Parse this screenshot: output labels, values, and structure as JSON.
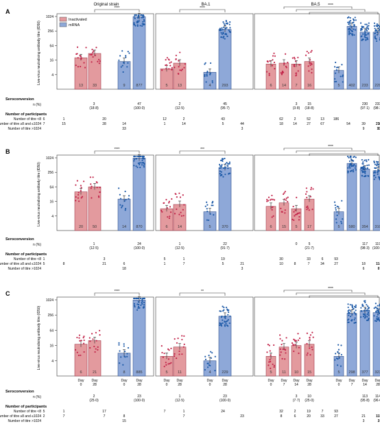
{
  "header": {
    "strains": [
      "Original strain",
      "BA.1",
      "BA.5"
    ]
  },
  "legend": {
    "items": [
      {
        "label": "Inactivated",
        "color": "#e39a9e"
      },
      {
        "label": "mRNA",
        "color": "#8ea8d8"
      }
    ]
  },
  "colors": {
    "inactivated_fill": "#e39a9e",
    "inactivated_dot": "#c2254a",
    "mrna_fill": "#8ea8d8",
    "mrna_dot": "#1f5ba8"
  },
  "x_tick_labels": [
    {
      "day": "Day",
      "value": "0"
    },
    {
      "day": "Day",
      "value": "28"
    },
    {
      "day": "Day",
      "value": "0"
    },
    {
      "day": "Day",
      "value": "28"
    },
    {
      "day": "Day",
      "value": "0"
    },
    {
      "day": "Day",
      "value": "28"
    },
    {
      "day": "Day",
      "value": "0"
    },
    {
      "day": "Day",
      "value": "28"
    },
    {
      "day": "Day",
      "value": "0"
    },
    {
      "day": "Day",
      "value": "7"
    },
    {
      "day": "Day",
      "value": "14"
    },
    {
      "day": "Day",
      "value": "28"
    },
    {
      "day": "Day",
      "value": "0"
    },
    {
      "day": "Day",
      "value": "7"
    },
    {
      "day": "Day",
      "value": "14"
    },
    {
      "day": "Day",
      "value": "28"
    }
  ],
  "table_labels": {
    "seroconversion": "Seroconversion",
    "n_pct": "n (%)",
    "participants": "Number of participants",
    "rows": [
      "Number of titre <8",
      "Number of titre ≥8 and ≤1024",
      "Number of titre >1024"
    ]
  },
  "chart_data": [
    {
      "type": "bar",
      "panel": "A",
      "ylabel": "Live-virus neutralising antibody titre (ID50)",
      "yscale": "log2",
      "ylim": [
        1,
        1024
      ],
      "yticks": [
        "1024",
        "256",
        "64",
        "16",
        "4"
      ],
      "groups": [
        {
          "strain": "Original strain",
          "bars": [
            {
              "vaccine": "Inactivated",
              "day": "0",
              "value": 20,
              "n": "13"
            },
            {
              "vaccine": "Inactivated",
              "day": "28",
              "value": 30,
              "n": "33"
            },
            {
              "vaccine": "mRNA",
              "day": "0",
              "value": 14,
              "n": "9"
            },
            {
              "vaccine": "mRNA",
              "day": "28",
              "value": 1000,
              "n": "877"
            }
          ]
        },
        {
          "strain": "BA.1",
          "bars": [
            {
              "vaccine": "Inactivated",
              "day": "0",
              "value": 7,
              "n": "5"
            },
            {
              "vaccine": "Inactivated",
              "day": "28",
              "value": 12,
              "n": "13"
            },
            {
              "vaccine": "mRNA",
              "day": "0",
              "value": 5,
              "n": "4"
            },
            {
              "vaccine": "mRNA",
              "day": "28",
              "value": 300,
              "n": "293"
            }
          ]
        },
        {
          "strain": "BA.5",
          "bars": [
            {
              "vaccine": "Inactivated",
              "day": "0",
              "value": 11,
              "n": "6"
            },
            {
              "vaccine": "Inactivated",
              "day": "7",
              "value": 12,
              "n": "14"
            },
            {
              "vaccine": "Inactivated",
              "day": "14",
              "value": 11,
              "n": "7"
            },
            {
              "vaccine": "Inactivated",
              "day": "28",
              "value": 14,
              "n": "16"
            },
            {
              "vaccine": "mRNA",
              "day": "0",
              "value": 6,
              "n": "5"
            },
            {
              "vaccine": "mRNA",
              "day": "7",
              "value": 400,
              "n": "402"
            },
            {
              "vaccine": "mRNA",
              "day": "14",
              "value": 230,
              "n": "233"
            },
            {
              "vaccine": "mRNA",
              "day": "28",
              "value": 230,
              "n": "229"
            }
          ]
        }
      ],
      "significance": [
        {
          "strain": "Original strain",
          "label": "****",
          "from": "Inactivated day 28",
          "to": "mRNA day 28"
        },
        {
          "strain": "BA.1",
          "label": "****",
          "from": "Inactivated day 28",
          "to": "mRNA day 28"
        },
        {
          "strain": "BA.5",
          "label": "****",
          "from": "Inactivated day 7/14/28",
          "to": "mRNA day 7/14/28"
        }
      ],
      "seroconversion": [
        {
          "strain": "Original strain",
          "entries": [
            {
              "pos": 1,
              "n": "3",
              "pct": "(18·8)"
            },
            {
              "pos": 3,
              "n": "47",
              "pct": "(100·0)"
            }
          ]
        },
        {
          "strain": "BA.1",
          "entries": [
            {
              "pos": 1,
              "n": "2",
              "pct": "(12·5)"
            },
            {
              "pos": 3,
              "n": "45",
              "pct": "(95·7)"
            }
          ]
        },
        {
          "strain": "BA.5",
          "entries": [
            {
              "pos": 2,
              "n": "3",
              "pct": "(3·8)"
            },
            {
              "pos": 3,
              "n": "15",
              "pct": "(18·8)"
            },
            {
              "pos": 6,
              "n": "230",
              "pct": "(97·1)"
            },
            {
              "pos": 7,
              "n": "233",
              "pct": "(98·3)"
            }
          ]
        }
      ],
      "participants": {
        "rows": [
          [
            "6",
            "1",
            "",
            "20",
            "",
            "12",
            "2",
            "",
            "43",
            "",
            "62",
            "2",
            "52",
            "13",
            "186",
            "",
            "",
            ""
          ],
          [
            "7",
            "15",
            "",
            "28",
            "14",
            "1",
            "14",
            "",
            "5",
            "44",
            "18",
            "14",
            "27",
            "67",
            "",
            "54",
            "39",
            "230",
            "212"
          ],
          [
            "",
            "",
            "",
            "",
            "33",
            "",
            "",
            "",
            "",
            "3",
            "",
            "",
            "",
            "",
            "",
            "",
            "9",
            "10",
            "8"
          ]
        ]
      }
    },
    {
      "type": "bar",
      "panel": "B",
      "ylabel": "Live-virus neutralising antibody titre (ID50)",
      "yscale": "log2",
      "ylim": [
        1,
        1024
      ],
      "yticks": [
        "1024",
        "256",
        "64",
        "16",
        "4"
      ],
      "groups": [
        {
          "strain": "Original strain",
          "bars": [
            {
              "vaccine": "Inactivated",
              "day": "0",
              "value": 40,
              "n": "20"
            },
            {
              "vaccine": "Inactivated",
              "day": "28",
              "value": 64,
              "n": "50"
            },
            {
              "vaccine": "mRNA",
              "day": "0",
              "value": 20,
              "n": "14"
            },
            {
              "vaccine": "mRNA",
              "day": "28",
              "value": 1000,
              "n": "870"
            }
          ]
        },
        {
          "strain": "BA.1",
          "bars": [
            {
              "vaccine": "Inactivated",
              "day": "0",
              "value": 8,
              "n": "6"
            },
            {
              "vaccine": "Inactivated",
              "day": "28",
              "value": 12,
              "n": "14"
            },
            {
              "vaccine": "mRNA",
              "day": "0",
              "value": 6,
              "n": "5"
            },
            {
              "vaccine": "mRNA",
              "day": "28",
              "value": 400,
              "n": "370"
            }
          ]
        },
        {
          "strain": "BA.5",
          "bars": [
            {
              "vaccine": "Inactivated",
              "day": "0",
              "value": 10,
              "n": "6"
            },
            {
              "vaccine": "Inactivated",
              "day": "7",
              "value": 14,
              "n": "15"
            },
            {
              "vaccine": "Inactivated",
              "day": "14",
              "value": 8,
              "n": "5"
            },
            {
              "vaccine": "Inactivated",
              "day": "28",
              "value": 20,
              "n": "17"
            },
            {
              "vaccine": "mRNA",
              "day": "0",
              "value": 6,
              "n": "5"
            },
            {
              "vaccine": "mRNA",
              "day": "7",
              "value": 600,
              "n": "580"
            },
            {
              "vaccine": "mRNA",
              "day": "14",
              "value": 350,
              "n": "354"
            },
            {
              "vaccine": "mRNA",
              "day": "28",
              "value": 300,
              "n": "310"
            }
          ]
        }
      ],
      "significance": [
        {
          "strain": "Original strain",
          "label": "****",
          "from": "Inactivated day 28",
          "to": "mRNA day 28"
        },
        {
          "strain": "BA.1",
          "label": "***",
          "from": "Inactivated day 28",
          "to": "mRNA day 28"
        },
        {
          "strain": "BA.5",
          "label": "****",
          "from": "Inactivated day 7/14/28",
          "to": "mRNA day 7/14/28"
        }
      ],
      "seroconversion": [
        {
          "strain": "Original strain",
          "entries": [
            {
              "pos": 1,
              "n": "1",
              "pct": "(12·5)"
            },
            {
              "pos": 3,
              "n": "24",
              "pct": "(100·0)"
            }
          ]
        },
        {
          "strain": "BA.1",
          "entries": [
            {
              "pos": 1,
              "n": "1",
              "pct": "(12·5)"
            },
            {
              "pos": 3,
              "n": "22",
              "pct": "(91·7)"
            }
          ]
        },
        {
          "strain": "BA.5",
          "entries": [
            {
              "pos": 2,
              "n": "0",
              "pct": ""
            },
            {
              "pos": 3,
              "n": "5",
              "pct": "(21·7)"
            },
            {
              "pos": 6,
              "n": "117",
              "pct": "(98·3)"
            },
            {
              "pos": 7,
              "n": "119",
              "pct": "(100·0)"
            }
          ]
        }
      ],
      "participants": {
        "rows": [
          [
            "1",
            "",
            "",
            "3",
            "",
            "5",
            "1",
            "",
            "19",
            "",
            "30",
            "",
            "33",
            "6",
            "93",
            "",
            "",
            ""
          ],
          [
            "5",
            "8",
            "",
            "21",
            "6",
            "1",
            "7",
            "",
            "5",
            "21",
            "10",
            "8",
            "7",
            "34",
            "27",
            "",
            "18",
            "113",
            "114"
          ],
          [
            "",
            "",
            "",
            "",
            "18",
            "",
            "",
            "",
            "",
            "3",
            "",
            "",
            "",
            "",
            "",
            "",
            "6",
            "7",
            "6"
          ]
        ]
      }
    },
    {
      "type": "bar",
      "panel": "C",
      "ylabel": "Live-virus neutralising antibody titre (ID50)",
      "yscale": "log2",
      "ylim": [
        1,
        1024
      ],
      "yticks": [
        "1024",
        "256",
        "64",
        "16",
        "4"
      ],
      "groups": [
        {
          "strain": "Original strain",
          "bars": [
            {
              "vaccine": "Inactivated",
              "day": "0",
              "value": 18,
              "n": "6"
            },
            {
              "vaccine": "Inactivated",
              "day": "28",
              "value": 25,
              "n": "21"
            },
            {
              "vaccine": "mRNA",
              "day": "0",
              "value": 8,
              "n": "8"
            },
            {
              "vaccine": "mRNA",
              "day": "28",
              "value": 1000,
              "n": "885"
            }
          ]
        },
        {
          "strain": "BA.1",
          "bars": [
            {
              "vaccine": "Inactivated",
              "day": "0",
              "value": 6,
              "n": "5"
            },
            {
              "vaccine": "Inactivated",
              "day": "28",
              "value": 14,
              "n": "11"
            },
            {
              "vaccine": "mRNA",
              "day": "0",
              "value": 4,
              "n": "4"
            },
            {
              "vaccine": "mRNA",
              "day": "28",
              "value": 230,
              "n": "229"
            }
          ]
        },
        {
          "strain": "BA.5",
          "bars": [
            {
              "vaccine": "Inactivated",
              "day": "0",
              "value": 6,
              "n": "5"
            },
            {
              "vaccine": "Inactivated",
              "day": "7",
              "value": 14,
              "n": "11"
            },
            {
              "vaccine": "Inactivated",
              "day": "14",
              "value": 16,
              "n": "10"
            },
            {
              "vaccine": "Inactivated",
              "day": "28",
              "value": 18,
              "n": "15"
            },
            {
              "vaccine": "mRNA",
              "day": "0",
              "value": 6,
              "n": "5"
            },
            {
              "vaccine": "mRNA",
              "day": "7",
              "value": 300,
              "n": "298"
            },
            {
              "vaccine": "mRNA",
              "day": "14",
              "value": 380,
              "n": "377"
            },
            {
              "vaccine": "mRNA",
              "day": "28",
              "value": 320,
              "n": "323"
            }
          ]
        }
      ],
      "significance": [
        {
          "strain": "Original strain",
          "label": "****",
          "from": "Inactivated day 28",
          "to": "mRNA day 28"
        },
        {
          "strain": "BA.1",
          "label": "**",
          "from": "Inactivated day 28",
          "to": "mRNA day 28"
        },
        {
          "strain": "BA.5",
          "label": "****",
          "from": "Inactivated day 7/14/28",
          "to": "mRNA day 7/14/28"
        }
      ],
      "seroconversion": [
        {
          "strain": "Original strain",
          "entries": [
            {
              "pos": 1,
              "n": "2",
              "pct": "(25·0)"
            },
            {
              "pos": 3,
              "n": "23",
              "pct": "(100·0)"
            }
          ]
        },
        {
          "strain": "BA.1",
          "entries": [
            {
              "pos": 1,
              "n": "1",
              "pct": "(12·5)"
            },
            {
              "pos": 3,
              "n": "23",
              "pct": "(100·0)"
            }
          ]
        },
        {
          "strain": "BA.5",
          "entries": [
            {
              "pos": 2,
              "n": "3",
              "pct": "(7·7)"
            },
            {
              "pos": 3,
              "n": "10",
              "pct": "(25·0)"
            },
            {
              "pos": 6,
              "n": "113",
              "pct": "(95·8)"
            },
            {
              "pos": 7,
              "n": "114",
              "pct": "(96·6)"
            }
          ]
        }
      ],
      "participants": {
        "rows": [
          [
            "5",
            "1",
            "",
            "17",
            "",
            "7",
            "1",
            "",
            "24",
            "",
            "32",
            "2",
            "19",
            "7",
            "93",
            "",
            "",
            ""
          ],
          [
            "2",
            "7",
            "",
            "7",
            "8",
            "",
            "7",
            "",
            "",
            "23",
            "8",
            "6",
            "20",
            "33",
            "27",
            "",
            "21",
            "117",
            "118"
          ],
          [
            "",
            "",
            "",
            "",
            "15",
            "",
            "",
            "",
            "",
            "",
            "",
            "",
            "",
            "",
            "",
            "",
            "3",
            "3",
            "2"
          ]
        ]
      }
    }
  ]
}
